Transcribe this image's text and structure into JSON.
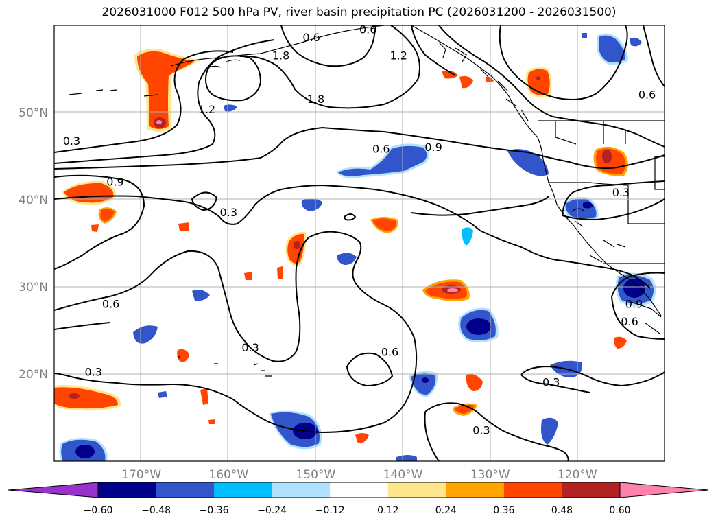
{
  "title": "2026031000 F012 500 hPa PV, river basin precipitation PC (2026031200 - 2026031500)",
  "lat_labels": [
    {
      "value": 50,
      "text": "50°N"
    },
    {
      "value": 40,
      "text": "40°N"
    },
    {
      "value": 30,
      "text": "30°N"
    },
    {
      "value": 20,
      "text": "20°N"
    }
  ],
  "lon_labels": [
    {
      "value": -170,
      "text": "170°W"
    },
    {
      "value": -160,
      "text": "160°W"
    },
    {
      "value": -150,
      "text": "150°W"
    },
    {
      "value": -140,
      "text": "140°W"
    },
    {
      "value": -130,
      "text": "130°W"
    },
    {
      "value": -120,
      "text": "120°W"
    }
  ],
  "extent": {
    "lon_min": -180,
    "lon_max": -110,
    "lat_min": 10,
    "lat_max": 60
  },
  "pv_contour_labels": [
    {
      "text": "0.3",
      "lon": -178,
      "lat": 46.7
    },
    {
      "text": "1.2",
      "lon": -162.5,
      "lat": 50.3
    },
    {
      "text": "1.8",
      "lon": -150,
      "lat": 51.5
    },
    {
      "text": "1.8",
      "lon": -154,
      "lat": 56.5
    },
    {
      "text": "0.6",
      "lon": -150.5,
      "lat": 58.6
    },
    {
      "text": "0.6",
      "lon": -144,
      "lat": 59.5
    },
    {
      "text": "1.2",
      "lon": -140.5,
      "lat": 56.5
    },
    {
      "text": "0.6",
      "lon": -142.5,
      "lat": 45.8
    },
    {
      "text": "0.9",
      "lon": -136.5,
      "lat": 46
    },
    {
      "text": "0.9",
      "lon": -173,
      "lat": 42
    },
    {
      "text": "0.3",
      "lon": -160,
      "lat": 38.5
    },
    {
      "text": "0.6",
      "lon": -173.5,
      "lat": 28
    },
    {
      "text": "0.3",
      "lon": -157.5,
      "lat": 23
    },
    {
      "text": "0.3",
      "lon": -175.5,
      "lat": 20.2
    },
    {
      "text": "0.6",
      "lon": -141.5,
      "lat": 22.5
    },
    {
      "text": "0.3",
      "lon": -131,
      "lat": 13.5
    },
    {
      "text": "0.3",
      "lon": -123,
      "lat": 19
    },
    {
      "text": "0.3",
      "lon": -115,
      "lat": 40.8
    },
    {
      "text": "0.6",
      "lon": -112,
      "lat": 52
    },
    {
      "text": "0.6",
      "lon": -114,
      "lat": 26
    },
    {
      "text": "0.9",
      "lon": -113.5,
      "lat": 28
    }
  ],
  "colorbar": {
    "ticks": [
      "−0.60",
      "−0.48",
      "−0.36",
      "−0.24",
      "−0.12",
      "0.12",
      "0.24",
      "0.36",
      "0.48",
      "0.60"
    ],
    "colors": [
      "#9932cc",
      "#00008b",
      "#3255cc",
      "#00bfff",
      "#b0e2ff",
      "#ffffff",
      "#ffe68c",
      "#ffa500",
      "#ff4500",
      "#b22222",
      "#ff82ab"
    ]
  },
  "precip_palette": {
    "neg_strong": "#00008b",
    "neg_mid": "#3255cc",
    "neg_weak": "#00bfff",
    "neg_faint": "#b0e2ff",
    "pos_faint": "#ffe68c",
    "pos_weak": "#ffa500",
    "pos_mid": "#ff4500",
    "pos_strong": "#b22222",
    "pos_extreme": "#ff82ab"
  }
}
